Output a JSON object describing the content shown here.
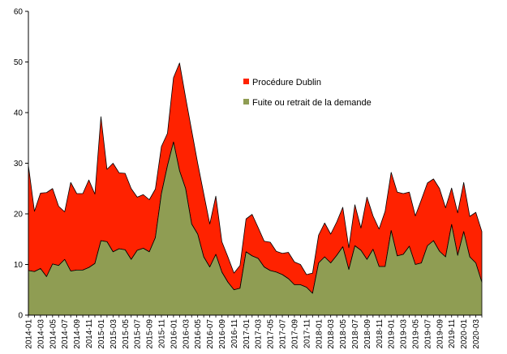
{
  "chart_data": {
    "type": "area",
    "stacked": true,
    "title": "",
    "xlabel": "",
    "ylabel": "",
    "ylim": [
      0,
      60
    ],
    "yticks": [
      0,
      10,
      20,
      30,
      40,
      50,
      60
    ],
    "grid": false,
    "legend_position": "center-right",
    "x": [
      "2014-01",
      "2014-02",
      "2014-03",
      "2014-04",
      "2014-05",
      "2014-06",
      "2014-07",
      "2014-08",
      "2014-09",
      "2014-10",
      "2014-11",
      "2014-12",
      "2015-01",
      "2015-02",
      "2015-03",
      "2015-04",
      "2015-05",
      "2015-06",
      "2015-07",
      "2015-08",
      "2015-09",
      "2015-10",
      "2015-11",
      "2015-12",
      "2016-01",
      "2016-02",
      "2016-03",
      "2016-04",
      "2016-05",
      "2016-06",
      "2016-07",
      "2016-08",
      "2016-09",
      "2016-10",
      "2016-11",
      "2016-12",
      "2017-01",
      "2017-02",
      "2017-03",
      "2017-04",
      "2017-05",
      "2017-06",
      "2017-07",
      "2017-08",
      "2017-09",
      "2017-10",
      "2017-11",
      "2017-12",
      "2018-01",
      "2018-02",
      "2018-03",
      "2018-04",
      "2018-05",
      "2018-06",
      "2018-07",
      "2018-08",
      "2018-09",
      "2018-10",
      "2018-11",
      "2018-12",
      "2019-01",
      "2019-02",
      "2019-03",
      "2019-04",
      "2019-05",
      "2019-06",
      "2019-07",
      "2019-08",
      "2019-09",
      "2019-10",
      "2019-11",
      "2019-12",
      "2020-01",
      "2020-02",
      "2020-03",
      "2020-04"
    ],
    "xtick_labels": [
      "2014-01",
      "2014-03",
      "2014-05",
      "2014-07",
      "2014-09",
      "2014-11",
      "2015-01",
      "2015-03",
      "2015-05",
      "2015-07",
      "2015-09",
      "2015-11",
      "2016-01",
      "2016-03",
      "2016-05",
      "2016-07",
      "2016-09",
      "2016-11",
      "2017-01",
      "2017-03",
      "2017-05",
      "2017-07",
      "2017-09",
      "2017-11",
      "2018-01",
      "2018-03",
      "2018-05",
      "2018-07",
      "2018-09",
      "2018-11",
      "2019-01",
      "2019-03",
      "2019-05",
      "2019-07",
      "2019-09",
      "2019-11",
      "2020-01",
      "2020-03"
    ],
    "series": [
      {
        "name": "Fuite ou retrait de la demande",
        "color": "#8f9d53",
        "values": [
          8.8,
          8.6,
          9.2,
          7.6,
          10.1,
          9.8,
          11.0,
          8.7,
          8.9,
          8.9,
          9.4,
          10.2,
          14.7,
          14.5,
          12.5,
          13.1,
          12.9,
          11.0,
          12.8,
          13.2,
          12.5,
          15.3,
          24.0,
          29.5,
          34.2,
          28.5,
          25.0,
          18.0,
          16.0,
          11.5,
          9.5,
          12.0,
          8.5,
          6.5,
          5.0,
          5.3,
          12.5,
          11.7,
          11.2,
          9.5,
          8.8,
          8.5,
          8.0,
          7.2,
          6.0,
          6.0,
          5.5,
          4.3,
          10.3,
          11.5,
          10.3,
          11.8,
          13.5,
          9.0,
          13.7,
          12.8,
          11.0,
          13.0,
          9.6,
          9.6,
          16.7,
          11.7,
          12.0,
          13.6,
          10.0,
          10.3,
          13.7,
          14.7,
          12.6,
          11.5,
          17.9,
          11.8,
          16.5,
          11.5,
          10.3,
          6.5
        ]
      },
      {
        "name": "Procédure Dublin",
        "color": "#ff2200",
        "values": [
          20.8,
          11.9,
          14.9,
          16.6,
          14.9,
          11.7,
          9.4,
          17.5,
          15.1,
          15.1,
          17.3,
          13.7,
          24.5,
          14.3,
          17.5,
          15.0,
          15.1,
          14.0,
          10.5,
          10.6,
          10.3,
          9.6,
          9.3,
          6.4,
          12.7,
          21.3,
          18.0,
          18.5,
          14.0,
          12.5,
          8.5,
          11.5,
          6.0,
          5.0,
          3.3,
          4.5,
          6.5,
          8.2,
          6.1,
          5.1,
          5.6,
          4.1,
          4.2,
          5.2,
          4.5,
          4.0,
          2.5,
          4.0,
          5.5,
          6.7,
          5.7,
          6.6,
          7.8,
          4.3,
          8.1,
          4.4,
          12.3,
          6.6,
          7.4,
          10.9,
          11.5,
          12.6,
          12.0,
          10.7,
          9.6,
          12.5,
          12.4,
          12.2,
          12.4,
          9.7,
          7.2,
          8.4,
          9.7,
          8.0,
          10.0,
          10.0
        ]
      }
    ],
    "legend": [
      {
        "label": "Procédure Dublin",
        "color": "#ff2200"
      },
      {
        "label": "Fuite ou retrait de la demande",
        "color": "#8f9d53"
      }
    ]
  }
}
